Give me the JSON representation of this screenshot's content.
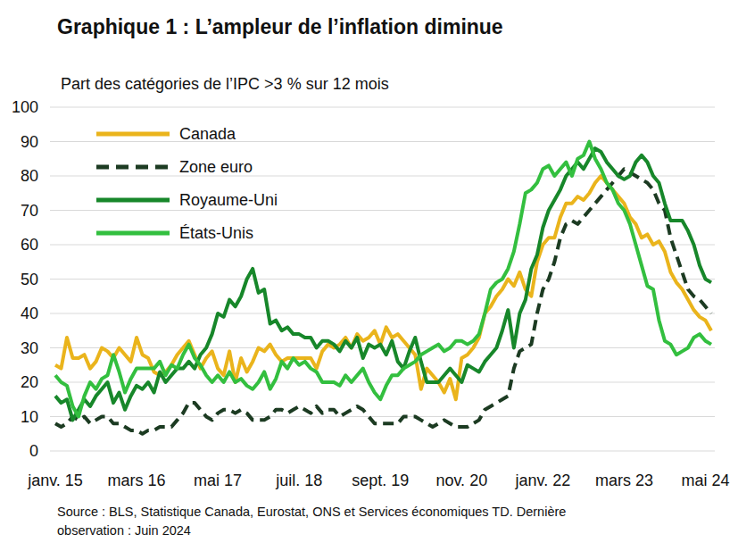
{
  "chart_data": {
    "type": "line",
    "title": "Graphique 1 : L’ampleur de l’inflation diminue",
    "subtitle": "Part des catégories de l’IPC >3 % sur 12 mois",
    "source": [
      "Source : BLS, Statistique Canada, Eurostat, ONS et Services économiques TD. Dernière",
      "observation : Juin 2024"
    ],
    "categories": [
      "janv. 15",
      null,
      null,
      null,
      null,
      null,
      null,
      null,
      null,
      null,
      null,
      null,
      null,
      null,
      "mars 16",
      null,
      null,
      null,
      null,
      null,
      null,
      null,
      null,
      null,
      null,
      null,
      null,
      null,
      "mai 17",
      null,
      null,
      null,
      null,
      null,
      null,
      null,
      null,
      null,
      null,
      null,
      null,
      null,
      "juil. 18",
      null,
      null,
      null,
      null,
      null,
      null,
      null,
      null,
      null,
      null,
      null,
      null,
      null,
      "sept. 19",
      null,
      null,
      null,
      null,
      null,
      null,
      null,
      null,
      null,
      null,
      null,
      null,
      null,
      "nov. 20",
      null,
      null,
      null,
      null,
      null,
      null,
      null,
      null,
      null,
      null,
      null,
      null,
      null,
      "janv. 22",
      null,
      null,
      null,
      null,
      null,
      null,
      null,
      null,
      null,
      null,
      null,
      null,
      null,
      "mars 23",
      null,
      null,
      null,
      null,
      null,
      null,
      null,
      null,
      null,
      null,
      null,
      null,
      null,
      "mai 24",
      null
    ],
    "series": [
      {
        "name": "Canada",
        "color": "#eab41c",
        "line_style": "solid",
        "values": [
          25,
          24,
          33,
          27,
          27,
          28,
          24,
          26,
          30,
          29,
          27,
          30,
          28,
          26,
          33,
          28,
          27,
          23,
          22,
          23,
          25,
          28,
          30,
          32,
          28,
          24,
          27,
          29,
          24,
          22,
          29,
          20,
          27,
          23,
          26,
          30,
          29,
          31,
          28,
          26,
          27,
          27,
          27,
          27,
          27,
          24,
          29,
          31,
          30,
          31,
          33,
          30,
          34,
          32,
          33,
          35,
          31,
          36,
          33,
          34,
          32,
          30,
          28,
          18,
          24,
          22,
          20,
          17,
          21,
          15,
          27,
          28,
          30,
          33,
          40,
          42,
          45,
          47,
          50,
          48,
          52,
          47,
          45,
          55,
          60,
          62,
          62,
          68,
          72,
          72,
          74,
          73,
          75,
          78,
          80,
          78,
          76,
          74,
          72,
          68,
          66,
          62,
          63,
          60,
          61,
          58,
          52,
          49,
          47,
          44,
          41,
          39,
          38,
          35
        ]
      },
      {
        "name": "Zone euro",
        "color": "#1c3b22",
        "line_style": "dashed",
        "values": [
          8,
          7,
          8,
          10,
          9,
          10,
          8,
          9,
          10,
          10,
          8,
          8,
          7,
          6,
          6,
          5,
          6,
          6,
          7,
          7,
          7,
          9,
          11,
          14,
          14,
          12,
          10,
          9,
          11,
          12,
          12,
          11,
          12,
          11,
          9,
          9,
          9,
          10,
          12,
          12,
          11,
          12,
          13,
          12,
          11,
          13,
          11,
          12,
          12,
          10,
          11,
          12,
          13,
          12,
          10,
          8,
          8,
          8,
          8,
          8,
          10,
          10,
          10,
          9,
          8,
          7,
          8,
          9,
          8,
          7,
          7,
          7,
          8,
          9,
          12,
          13,
          14,
          15,
          16,
          24,
          29,
          30,
          31,
          40,
          47,
          50,
          55,
          62,
          66,
          67,
          66,
          68,
          70,
          72,
          74,
          76,
          78,
          80,
          82,
          81,
          80,
          79,
          78,
          76,
          72,
          70,
          62,
          57,
          52,
          47,
          45,
          44,
          42,
          40
        ]
      },
      {
        "name": "Royaume-Uni",
        "color": "#17872a",
        "line_style": "solid",
        "values": [
          16,
          14,
          15,
          9,
          12,
          15,
          13,
          16,
          18,
          20,
          14,
          17,
          12,
          16,
          19,
          18,
          20,
          17,
          23,
          20,
          22,
          24,
          24,
          26,
          24,
          28,
          30,
          34,
          40,
          39,
          44,
          42,
          45,
          50,
          53,
          46,
          47,
          37,
          38,
          35,
          36,
          34,
          34,
          33,
          33,
          30,
          32,
          32,
          31,
          29,
          32,
          30,
          33,
          27,
          31,
          30,
          31,
          28,
          32,
          26,
          24,
          29,
          33,
          26,
          20,
          20,
          20,
          22,
          24,
          22,
          20,
          25,
          24,
          23,
          26,
          28,
          30,
          35,
          41,
          30,
          40,
          44,
          53,
          57,
          65,
          70,
          73,
          76,
          80,
          82,
          84,
          82,
          85,
          88,
          87,
          84,
          82,
          80,
          79,
          80,
          84,
          86,
          84,
          80,
          78,
          72,
          67,
          67,
          67,
          64,
          60,
          54,
          50,
          49
        ]
      },
      {
        "name": "États-Unis",
        "color": "#33bf3f",
        "line_style": "solid",
        "values": [
          22,
          20,
          19,
          13,
          10,
          16,
          20,
          18,
          21,
          22,
          28,
          23,
          17,
          21,
          24,
          24,
          24,
          24,
          26,
          22,
          25,
          24,
          28,
          31,
          27,
          25,
          22,
          20,
          22,
          20,
          23,
          20,
          21,
          19,
          18,
          20,
          23,
          18,
          21,
          26,
          24,
          27,
          25,
          26,
          24,
          23,
          20,
          20,
          20,
          19,
          22,
          20,
          22,
          24,
          20,
          17,
          15,
          19,
          22,
          22,
          24,
          25,
          26,
          28,
          29,
          30,
          31,
          29,
          30,
          32,
          32,
          31,
          32,
          34,
          40,
          47,
          49,
          50,
          53,
          58,
          66,
          75,
          76,
          78,
          82,
          83,
          80,
          82,
          84,
          80,
          85,
          86,
          90,
          85,
          82,
          78,
          76,
          72,
          70,
          66,
          60,
          54,
          48,
          47,
          38,
          32,
          31,
          28,
          29,
          30,
          33,
          34,
          32,
          31
        ]
      }
    ],
    "ylim": [
      0,
      100
    ],
    "yticks": [
      0,
      10,
      20,
      30,
      40,
      50,
      60,
      70,
      80,
      90,
      100
    ],
    "grid": true,
    "legend": "top-left"
  }
}
